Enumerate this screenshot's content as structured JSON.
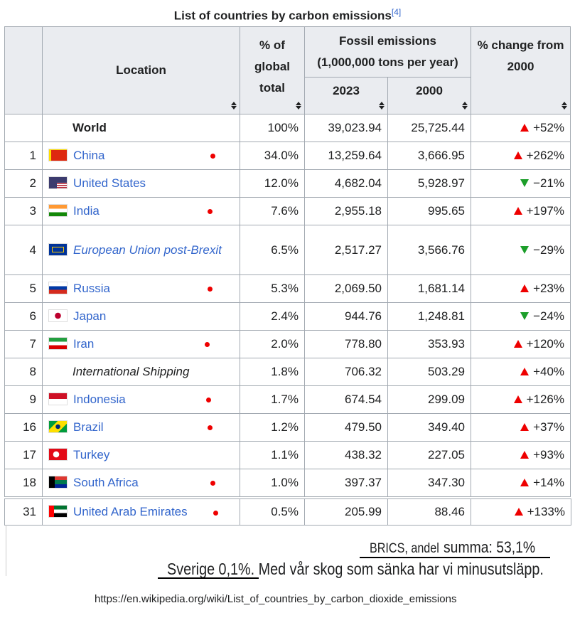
{
  "title": "List of countries by carbon emissions",
  "title_ref": "[4]",
  "header": {
    "location": "Location",
    "share": "% of global total",
    "fossil_title": "Fossil emissions",
    "fossil_unit": "(1,000,000 tons per year)",
    "y2023": "2023",
    "y2000": "2000",
    "change": "% change from 2000"
  },
  "rows": [
    {
      "location": "World",
      "share": "100%",
      "e2023": "39,023.94",
      "e2000": "25,725.44",
      "change": "+52%"
    },
    {
      "rank": "1",
      "location": "China",
      "share": "34.0%",
      "e2023": "13,259.64",
      "e2000": "3,666.95",
      "change": "+262%"
    },
    {
      "rank": "2",
      "location": "United States",
      "share": "12.0%",
      "e2023": "4,682.04",
      "e2000": "5,928.97",
      "change": "−21%"
    },
    {
      "rank": "3",
      "location": "India",
      "share": "7.6%",
      "e2023": "2,955.18",
      "e2000": "995.65",
      "change": "+197%"
    },
    {
      "rank": "4",
      "location": "European Union post-Brexit",
      "share": "6.5%",
      "e2023": "2,517.27",
      "e2000": "3,566.76",
      "change": "−29%"
    },
    {
      "rank": "5",
      "location": "Russia",
      "share": "5.3%",
      "e2023": "2,069.50",
      "e2000": "1,681.14",
      "change": "+23%"
    },
    {
      "rank": "6",
      "location": "Japan",
      "share": "2.4%",
      "e2023": "944.76",
      "e2000": "1,248.81",
      "change": "−24%"
    },
    {
      "rank": "7",
      "location": "Iran",
      "share": "2.0%",
      "e2023": "778.80",
      "e2000": "353.93",
      "change": "+120%"
    },
    {
      "rank": "8",
      "location": "International Shipping",
      "share": "1.8%",
      "e2023": "706.32",
      "e2000": "503.29",
      "change": "+40%"
    },
    {
      "rank": "9",
      "location": "Indonesia",
      "share": "1.7%",
      "e2023": "674.54",
      "e2000": "299.09",
      "change": "+126%"
    },
    {
      "rank": "16",
      "location": "Brazil",
      "share": "1.2%",
      "e2023": "479.50",
      "e2000": "349.40",
      "change": "+37%"
    },
    {
      "rank": "17",
      "location": "Turkey",
      "share": "1.1%",
      "e2023": "438.32",
      "e2000": "227.05",
      "change": "+93%"
    },
    {
      "rank": "18",
      "location": "South Africa",
      "share": "1.0%",
      "e2023": "397.37",
      "e2000": "347.30",
      "change": "+14%"
    },
    {
      "rank": "31",
      "location": "United Arab Emirates",
      "share": "0.5%",
      "e2023": "205.99",
      "e2000": "88.46",
      "change": "+133%"
    }
  ],
  "annotation": {
    "brics_label": "BRICS, andel",
    "brics_sum": "summa: 53,1%",
    "sweden": "Sverige 0,1%. Med vår skog som sänka har vi minusutsläpp."
  },
  "url": "https://en.wikipedia.org/wiki/List_of_countries_by_carbon_dioxide_emissions"
}
